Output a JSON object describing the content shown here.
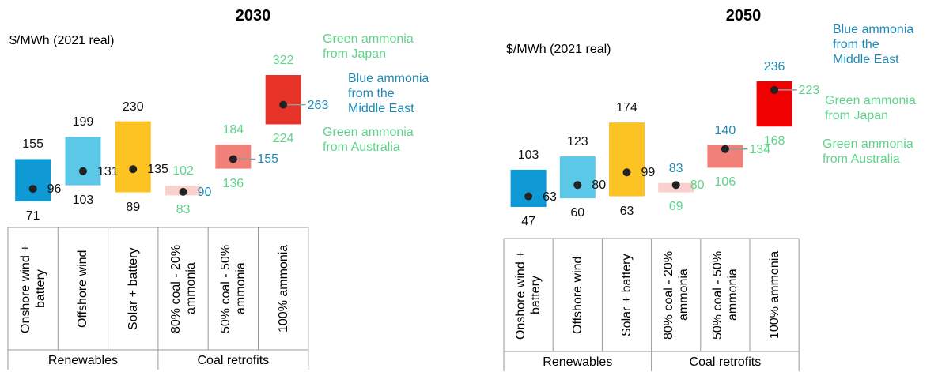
{
  "chart_data": [
    {
      "type": "bar",
      "title": "2030",
      "unit_label": "$/MWh (2021 real)",
      "categories": [
        "Onshore wind + battery",
        "Offshore wind",
        "Solar + battery",
        "80% coal - 20% ammonia",
        "50% coal - 50% ammonia",
        "100% ammonia"
      ],
      "groups": [
        "Renewables",
        "Coal retrofits"
      ],
      "category_group": [
        0,
        0,
        0,
        1,
        1,
        1
      ],
      "low": [
        71,
        103,
        89,
        83,
        136,
        224
      ],
      "high": [
        155,
        199,
        230,
        102,
        184,
        322
      ],
      "mid": [
        96,
        131,
        135,
        90,
        155,
        263
      ],
      "colors": [
        "#0f9ad6",
        "#5bc8e8",
        "#fdc323",
        "#f9d0cc",
        "#f08078",
        "#e83428"
      ],
      "low_label_colors": [
        "#111",
        "#111",
        "#111",
        "#5fd38a",
        "#5fd38a",
        "#5fd38a"
      ],
      "high_label_colors": [
        "#111",
        "#111",
        "#111",
        "#5fd38a",
        "#5fd38a",
        "#5fd38a"
      ],
      "mid_label_colors": [
        "#111",
        "#111",
        "#111",
        "#1f8ab5",
        "#1f8ab5",
        "#1f8ab5"
      ],
      "annotations": [
        {
          "text": "Green ammonia from Japan",
          "color": "#5fd38a"
        },
        {
          "text": "Blue ammonia from the Middle East",
          "color": "#1f8ab5"
        },
        {
          "text": "Green ammonia from Australia",
          "color": "#5fd38a"
        }
      ]
    },
    {
      "type": "bar",
      "title": "2050",
      "unit_label": "$/MWh (2021 real)",
      "categories": [
        "Onshore wind + battery",
        "Offshore wind",
        "Solar + battery",
        "80% coal - 20% ammonia",
        "50% coal - 50% ammonia",
        "100% ammonia"
      ],
      "groups": [
        "Renewables",
        "Coal retrofits"
      ],
      "category_group": [
        0,
        0,
        0,
        1,
        1,
        1
      ],
      "low": [
        47,
        60,
        63,
        69,
        106,
        168
      ],
      "high": [
        103,
        123,
        174,
        83,
        140,
        236
      ],
      "mid": [
        63,
        80,
        99,
        80,
        134,
        223
      ],
      "colors": [
        "#0f9ad6",
        "#5bc8e8",
        "#fdc323",
        "#f9d0cc",
        "#f08078",
        "#f00000"
      ],
      "low_label_colors": [
        "#111",
        "#111",
        "#111",
        "#5fd38a",
        "#5fd38a",
        "#5fd38a"
      ],
      "high_label_colors": [
        "#111",
        "#111",
        "#111",
        "#1f8ab5",
        "#1f8ab5",
        "#1f8ab5"
      ],
      "mid_label_colors": [
        "#111",
        "#111",
        "#111",
        "#5fd38a",
        "#5fd38a",
        "#5fd38a"
      ],
      "annotations": [
        {
          "text": "Blue ammonia from the Middle East",
          "color": "#1f8ab5"
        },
        {
          "text": "Green ammonia from Japan",
          "color": "#5fd38a"
        },
        {
          "text": "Green ammonia from Australia",
          "color": "#5fd38a"
        }
      ]
    }
  ]
}
